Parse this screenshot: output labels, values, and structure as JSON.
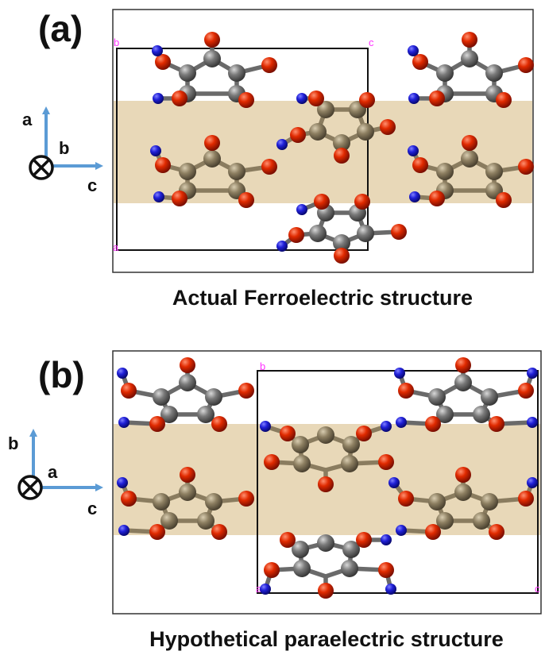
{
  "panels": [
    {
      "id": "a",
      "letter": "(a)",
      "caption": "Actual Ferroelectric structure",
      "axes": {
        "up": "a",
        "into_page": "b",
        "right": "c"
      },
      "cell_corners": {
        "top_left": "b",
        "top_right": "c",
        "bottom_left": "a"
      }
    },
    {
      "id": "b",
      "letter": "(b)",
      "caption": "Hypothetical paraelectric structure",
      "axes": {
        "up": "b",
        "into_page": "a",
        "right": "c"
      },
      "cell_corners": {
        "top_left": "b",
        "bottom_left": "a",
        "bottom_right": "c"
      }
    }
  ],
  "colors": {
    "oxygen": "#dd2200",
    "hydrogen": "#1a1acc",
    "carbon_highlighted": "#8a7c5f",
    "carbon_plain": "#7a7a7a",
    "layer_band": "#e8d8b8",
    "axis_arrow": "#5b9bd5",
    "cell_label": "#ff33ff"
  }
}
